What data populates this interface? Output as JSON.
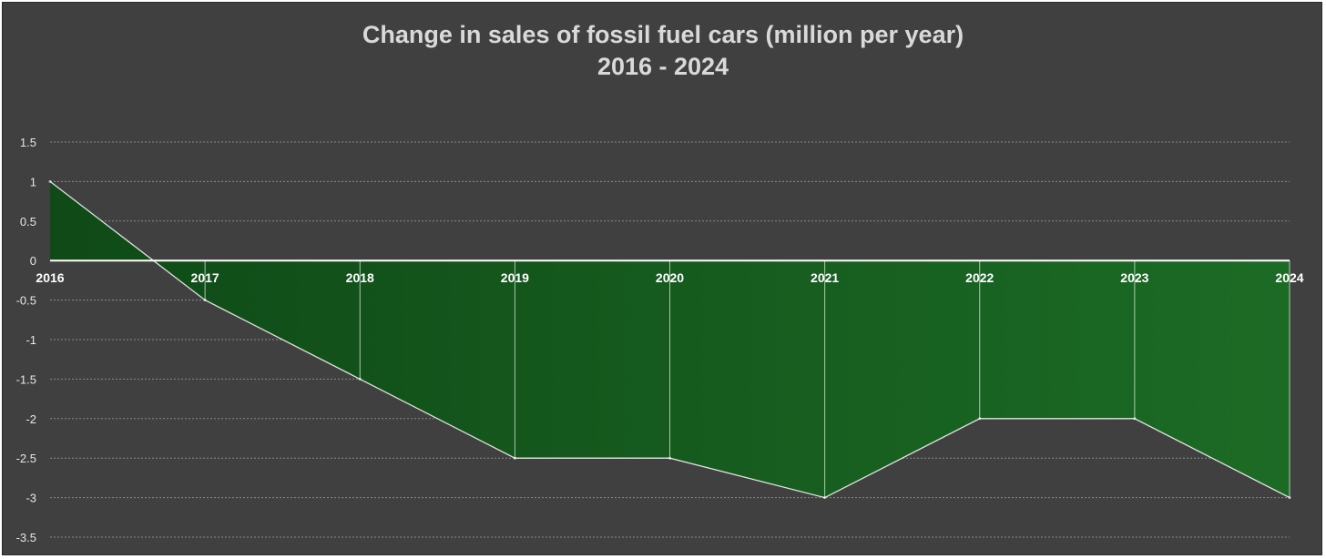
{
  "chart_data": {
    "type": "area",
    "title": "Change in sales of fossil fuel cars (million per year)",
    "subtitle": "2016 - 2024",
    "xlabel": "",
    "ylabel": "",
    "categories": [
      "2016",
      "2017",
      "2018",
      "2019",
      "2020",
      "2021",
      "2022",
      "2023",
      "2024"
    ],
    "series": [
      {
        "name": "Change in sales of fossil fuel cars",
        "values": [
          1,
          -0.5,
          -1.5,
          -2.5,
          -2.5,
          -3,
          -2,
          -2,
          -3
        ]
      }
    ],
    "ylim": [
      -3.5,
      1.5
    ],
    "yticks": [
      1.5,
      1,
      0.5,
      0,
      -0.5,
      -1,
      -1.5,
      -2,
      -2.5,
      -3,
      -3.5
    ],
    "ytick_labels": [
      "1.5",
      "1",
      "0.5",
      "0",
      "-0.5",
      "-1",
      "-1.5",
      "-2",
      "-2.5",
      "-3",
      "-3.5"
    ],
    "grid": true,
    "legend": "none"
  },
  "colors": {
    "background": "#404040",
    "area_fill": "#1a6423",
    "area_fill_dark": "#114d19",
    "line": "#ffffff",
    "grid": "#8a8a8a",
    "title": "#d9d9d9"
  }
}
